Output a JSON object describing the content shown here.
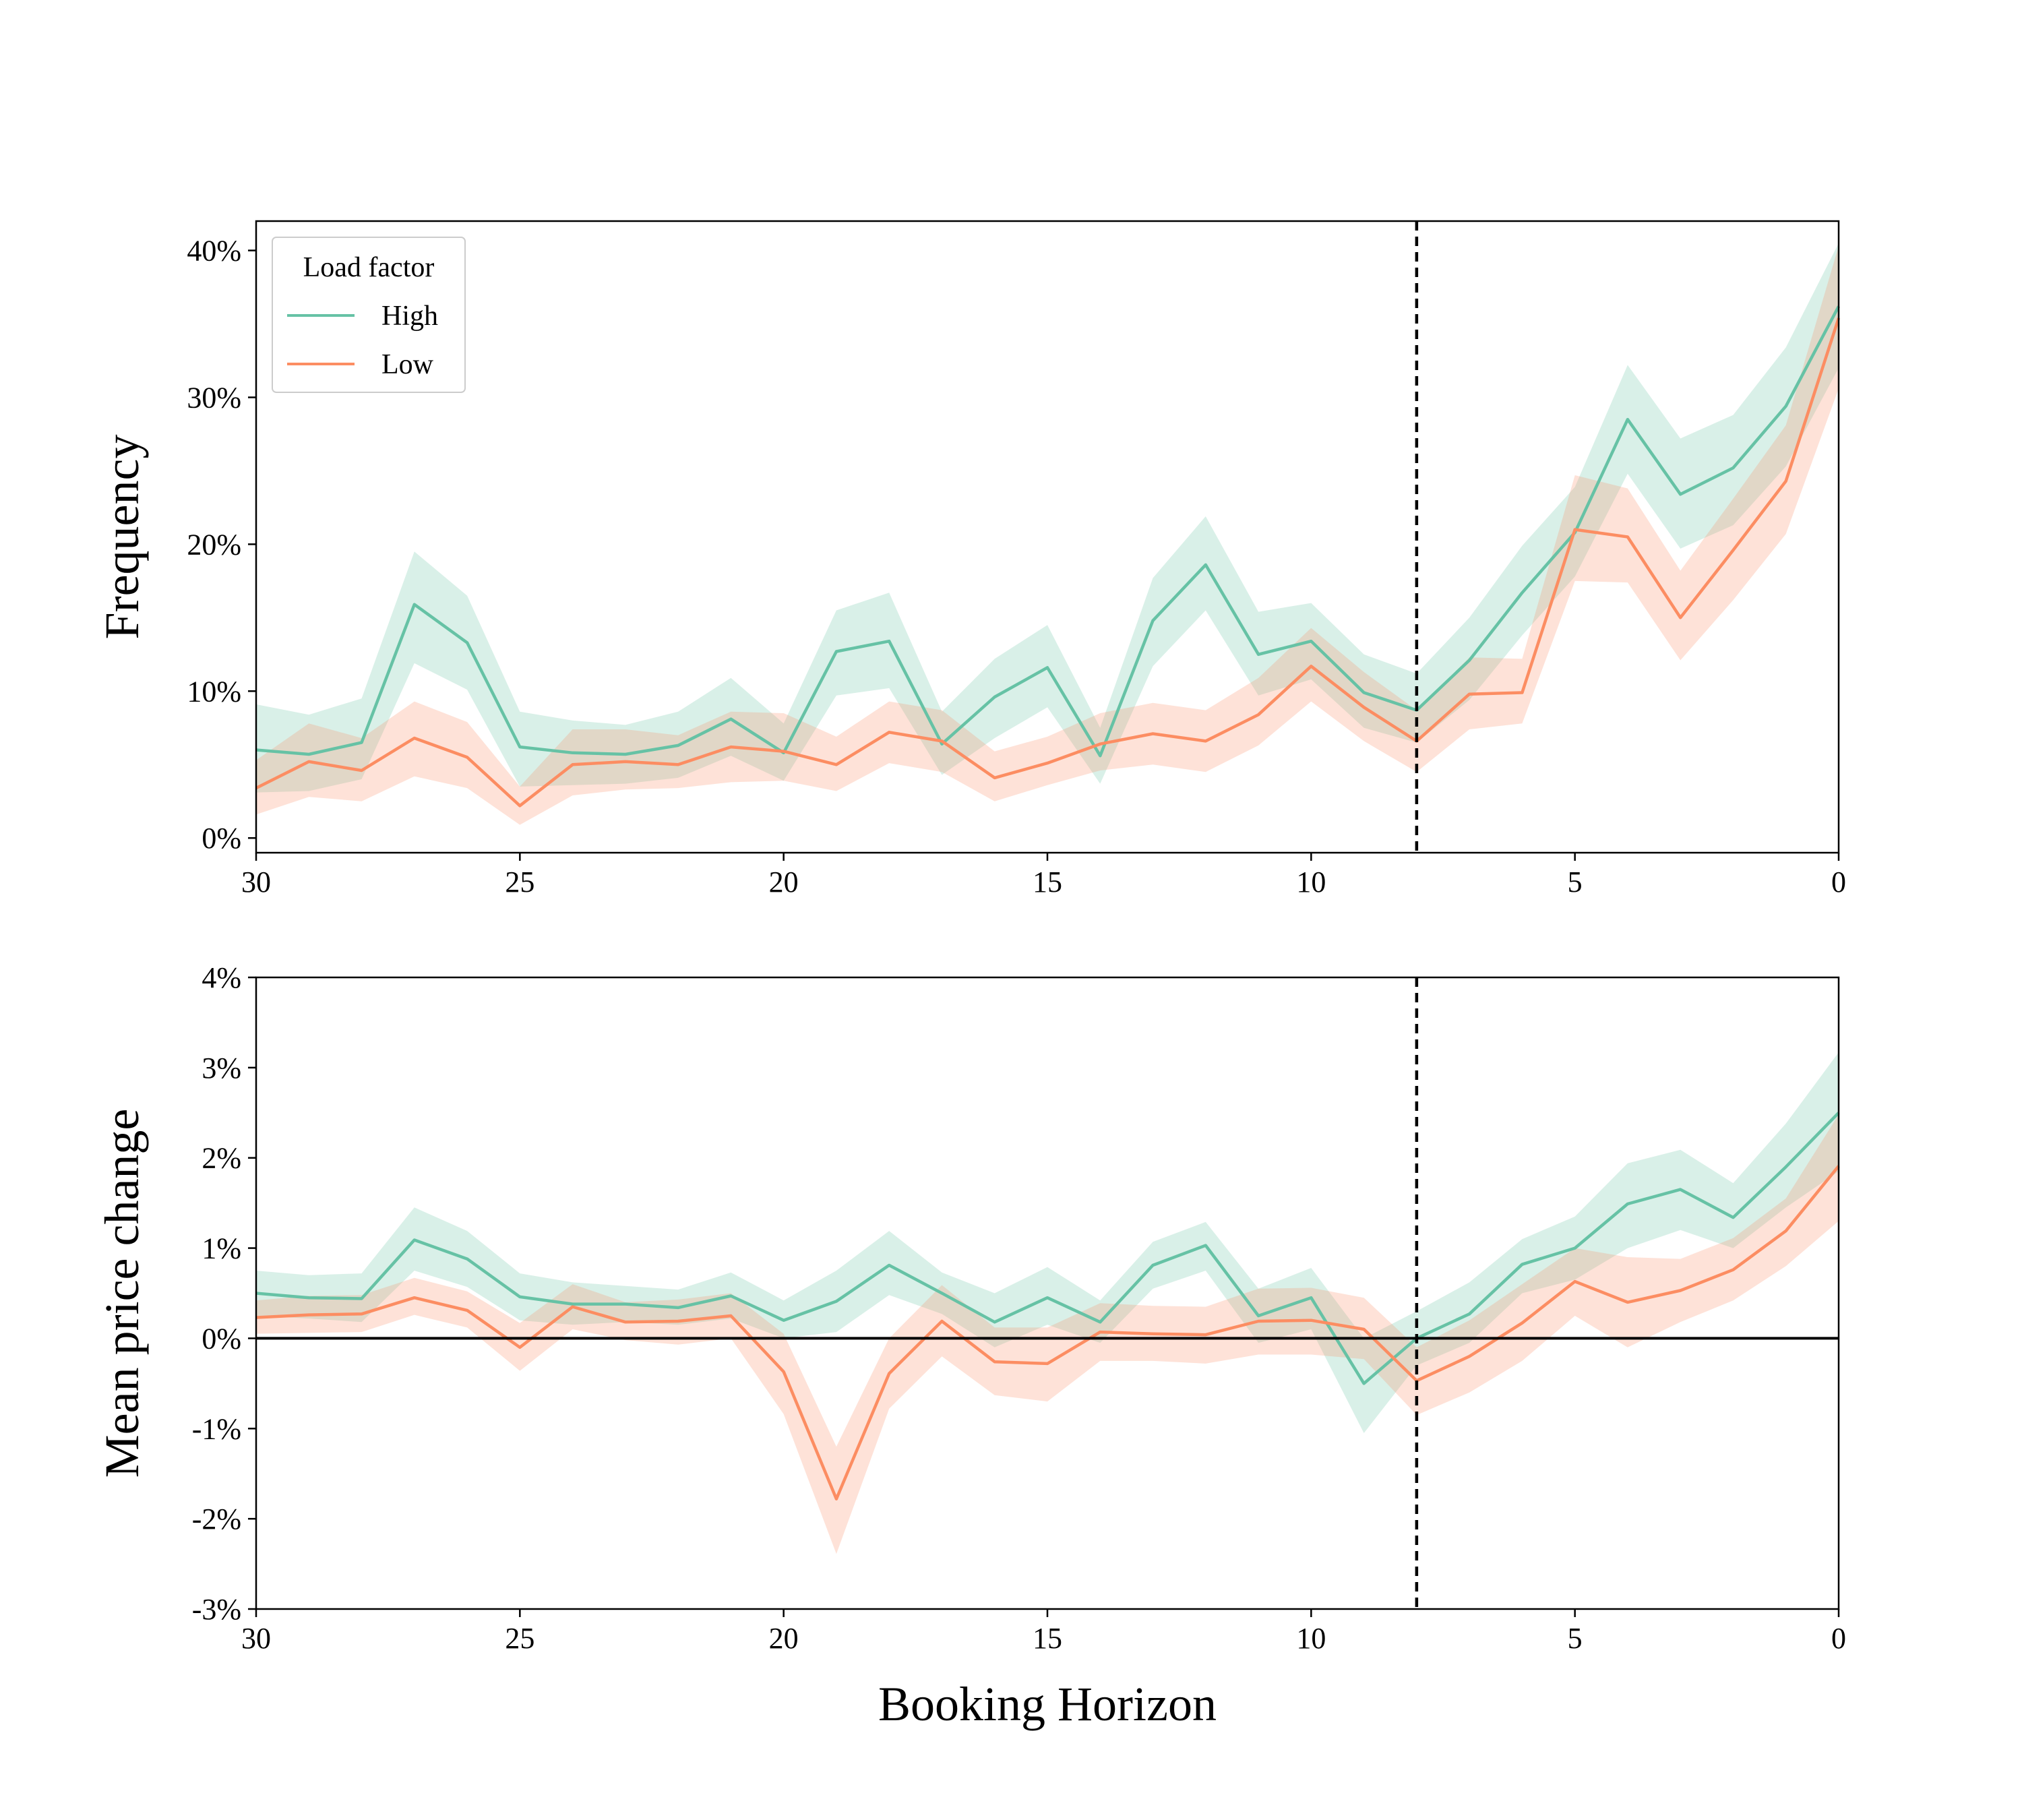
{
  "colors": {
    "high": "#66c2a5",
    "low": "#fc8d62",
    "vline": "#000000",
    "zero_line": "#000000"
  },
  "legend": {
    "title": "Load factor",
    "entries": [
      "High",
      "Low"
    ],
    "location": "upper-left"
  },
  "chart_data": [
    {
      "type": "line",
      "panel": "top",
      "xlabel": "",
      "ylabel": "Frequency",
      "x_reversed": true,
      "xlim": [
        30,
        0
      ],
      "ylim": [
        -1,
        42
      ],
      "xticks": [
        30,
        25,
        20,
        15,
        10,
        5,
        0
      ],
      "yticks": [
        0,
        10,
        20,
        30,
        40
      ],
      "ytick_labels": [
        "0%",
        "10%",
        "20%",
        "30%",
        "40%"
      ],
      "vline_x": 8,
      "x": [
        30,
        29,
        28,
        27,
        26,
        25,
        24,
        23,
        22,
        21,
        20,
        19,
        18,
        17,
        16,
        15,
        14,
        13,
        12,
        11,
        10,
        9,
        8,
        7,
        6,
        5,
        4,
        3,
        2,
        1,
        0
      ],
      "series": [
        {
          "name": "High",
          "color_key": "high",
          "values": [
            6.0,
            5.7,
            6.5,
            15.9,
            13.3,
            6.2,
            5.8,
            5.7,
            6.3,
            8.1,
            5.8,
            12.7,
            13.4,
            6.4,
            9.6,
            11.6,
            5.6,
            14.8,
            18.6,
            12.5,
            13.4,
            9.9,
            8.7,
            12.1,
            16.7,
            20.8,
            28.5,
            23.4,
            25.2,
            29.4,
            36.2
          ],
          "lower": [
            3.1,
            3.2,
            4.0,
            11.9,
            10.1,
            3.5,
            3.6,
            3.7,
            4.1,
            5.6,
            3.9,
            9.7,
            10.2,
            4.3,
            6.8,
            8.9,
            3.7,
            11.7,
            15.5,
            9.7,
            10.8,
            7.5,
            6.5,
            9.4,
            13.8,
            17.8,
            24.8,
            19.7,
            21.3,
            25.3,
            32.0
          ],
          "upper": [
            9.1,
            8.4,
            9.5,
            19.5,
            16.5,
            8.6,
            8.0,
            7.7,
            8.6,
            10.9,
            7.8,
            15.5,
            16.7,
            8.6,
            12.2,
            14.5,
            7.5,
            17.7,
            21.9,
            15.4,
            16.0,
            12.5,
            11.2,
            15.0,
            19.9,
            23.9,
            32.2,
            27.2,
            28.8,
            33.4,
            40.5
          ]
        },
        {
          "name": "Low",
          "color_key": "low",
          "values": [
            3.4,
            5.2,
            4.6,
            6.8,
            5.5,
            2.2,
            5.0,
            5.2,
            5.0,
            6.2,
            5.9,
            5.0,
            7.2,
            6.6,
            4.1,
            5.1,
            6.4,
            7.1,
            6.6,
            8.4,
            11.7,
            8.9,
            6.6,
            9.8,
            9.9,
            21.0,
            20.5,
            15.0,
            19.6,
            24.3,
            35.4
          ],
          "lower": [
            1.6,
            2.8,
            2.5,
            4.2,
            3.4,
            0.9,
            2.9,
            3.3,
            3.4,
            3.8,
            3.9,
            3.2,
            5.1,
            4.5,
            2.5,
            3.6,
            4.6,
            5.0,
            4.5,
            6.3,
            9.3,
            6.6,
            4.5,
            7.4,
            7.8,
            17.5,
            17.4,
            12.1,
            16.2,
            20.7,
            30.6
          ],
          "upper": [
            5.3,
            7.8,
            6.8,
            9.3,
            7.9,
            3.5,
            7.4,
            7.4,
            7.0,
            8.6,
            8.5,
            6.9,
            9.3,
            8.7,
            5.9,
            6.9,
            8.5,
            9.2,
            8.7,
            10.9,
            14.3,
            11.3,
            8.7,
            12.3,
            12.2,
            24.7,
            23.8,
            18.2,
            23.1,
            28.1,
            40.3
          ]
        }
      ]
    },
    {
      "type": "line",
      "panel": "bottom",
      "xlabel": "Booking Horizon",
      "ylabel": "Mean price change",
      "x_reversed": true,
      "xlim": [
        30,
        0
      ],
      "ylim": [
        -3,
        4
      ],
      "xticks": [
        30,
        25,
        20,
        15,
        10,
        5,
        0
      ],
      "yticks": [
        -3,
        -2,
        -1,
        0,
        1,
        2,
        3,
        4
      ],
      "ytick_labels": [
        "-3%",
        "-2%",
        "-1%",
        "0%",
        "1%",
        "2%",
        "3%",
        "4%"
      ],
      "vline_x": 8,
      "hline_y": 0,
      "x": [
        30,
        29,
        28,
        27,
        26,
        25,
        24,
        23,
        22,
        21,
        20,
        19,
        18,
        17,
        16,
        15,
        14,
        13,
        12,
        11,
        10,
        9,
        8,
        7,
        6,
        5,
        4,
        3,
        2,
        1,
        0
      ],
      "series": [
        {
          "name": "High",
          "color_key": "high",
          "values": [
            0.5,
            0.45,
            0.44,
            1.09,
            0.88,
            0.46,
            0.38,
            0.38,
            0.34,
            0.47,
            0.2,
            0.41,
            0.81,
            0.5,
            0.18,
            0.45,
            0.18,
            0.81,
            1.03,
            0.25,
            0.45,
            -0.5,
            0.0,
            0.27,
            0.82,
            1.0,
            1.49,
            1.65,
            1.34,
            1.9,
            2.5
          ],
          "lower": [
            0.25,
            0.22,
            0.18,
            0.75,
            0.57,
            0.2,
            0.15,
            0.18,
            0.15,
            0.22,
            0.0,
            0.07,
            0.48,
            0.27,
            -0.1,
            0.15,
            -0.05,
            0.55,
            0.75,
            -0.05,
            0.1,
            -1.05,
            -0.3,
            -0.05,
            0.5,
            0.65,
            1.0,
            1.2,
            1.0,
            1.45,
            1.85
          ],
          "upper": [
            0.75,
            0.7,
            0.72,
            1.45,
            1.19,
            0.72,
            0.62,
            0.58,
            0.54,
            0.73,
            0.42,
            0.75,
            1.19,
            0.73,
            0.5,
            0.79,
            0.42,
            1.07,
            1.29,
            0.55,
            0.78,
            0.0,
            0.3,
            0.62,
            1.1,
            1.35,
            1.94,
            2.09,
            1.72,
            2.38,
            3.17
          ]
        },
        {
          "name": "Low",
          "color_key": "low",
          "values": [
            0.23,
            0.26,
            0.27,
            0.45,
            0.31,
            -0.1,
            0.35,
            0.18,
            0.19,
            0.25,
            -0.37,
            -1.78,
            -0.39,
            0.19,
            -0.26,
            -0.28,
            0.07,
            0.05,
            0.04,
            0.19,
            0.2,
            0.1,
            -0.47,
            -0.2,
            0.17,
            0.63,
            0.4,
            0.53,
            0.76,
            1.19,
            1.91
          ],
          "lower": [
            0.05,
            0.06,
            0.07,
            0.26,
            0.12,
            -0.36,
            0.1,
            -0.02,
            -0.07,
            0.0,
            -0.84,
            -2.39,
            -0.78,
            -0.2,
            -0.63,
            -0.7,
            -0.25,
            -0.25,
            -0.28,
            -0.18,
            -0.18,
            -0.23,
            -0.85,
            -0.6,
            -0.25,
            0.25,
            -0.1,
            0.18,
            0.42,
            0.8,
            1.3
          ],
          "upper": [
            0.42,
            0.47,
            0.48,
            0.67,
            0.52,
            0.17,
            0.6,
            0.4,
            0.43,
            0.5,
            0.05,
            -1.2,
            0.0,
            0.59,
            0.12,
            0.12,
            0.39,
            0.36,
            0.35,
            0.55,
            0.56,
            0.45,
            -0.1,
            0.2,
            0.6,
            1.0,
            0.9,
            0.88,
            1.11,
            1.55,
            2.48
          ]
        }
      ]
    }
  ]
}
